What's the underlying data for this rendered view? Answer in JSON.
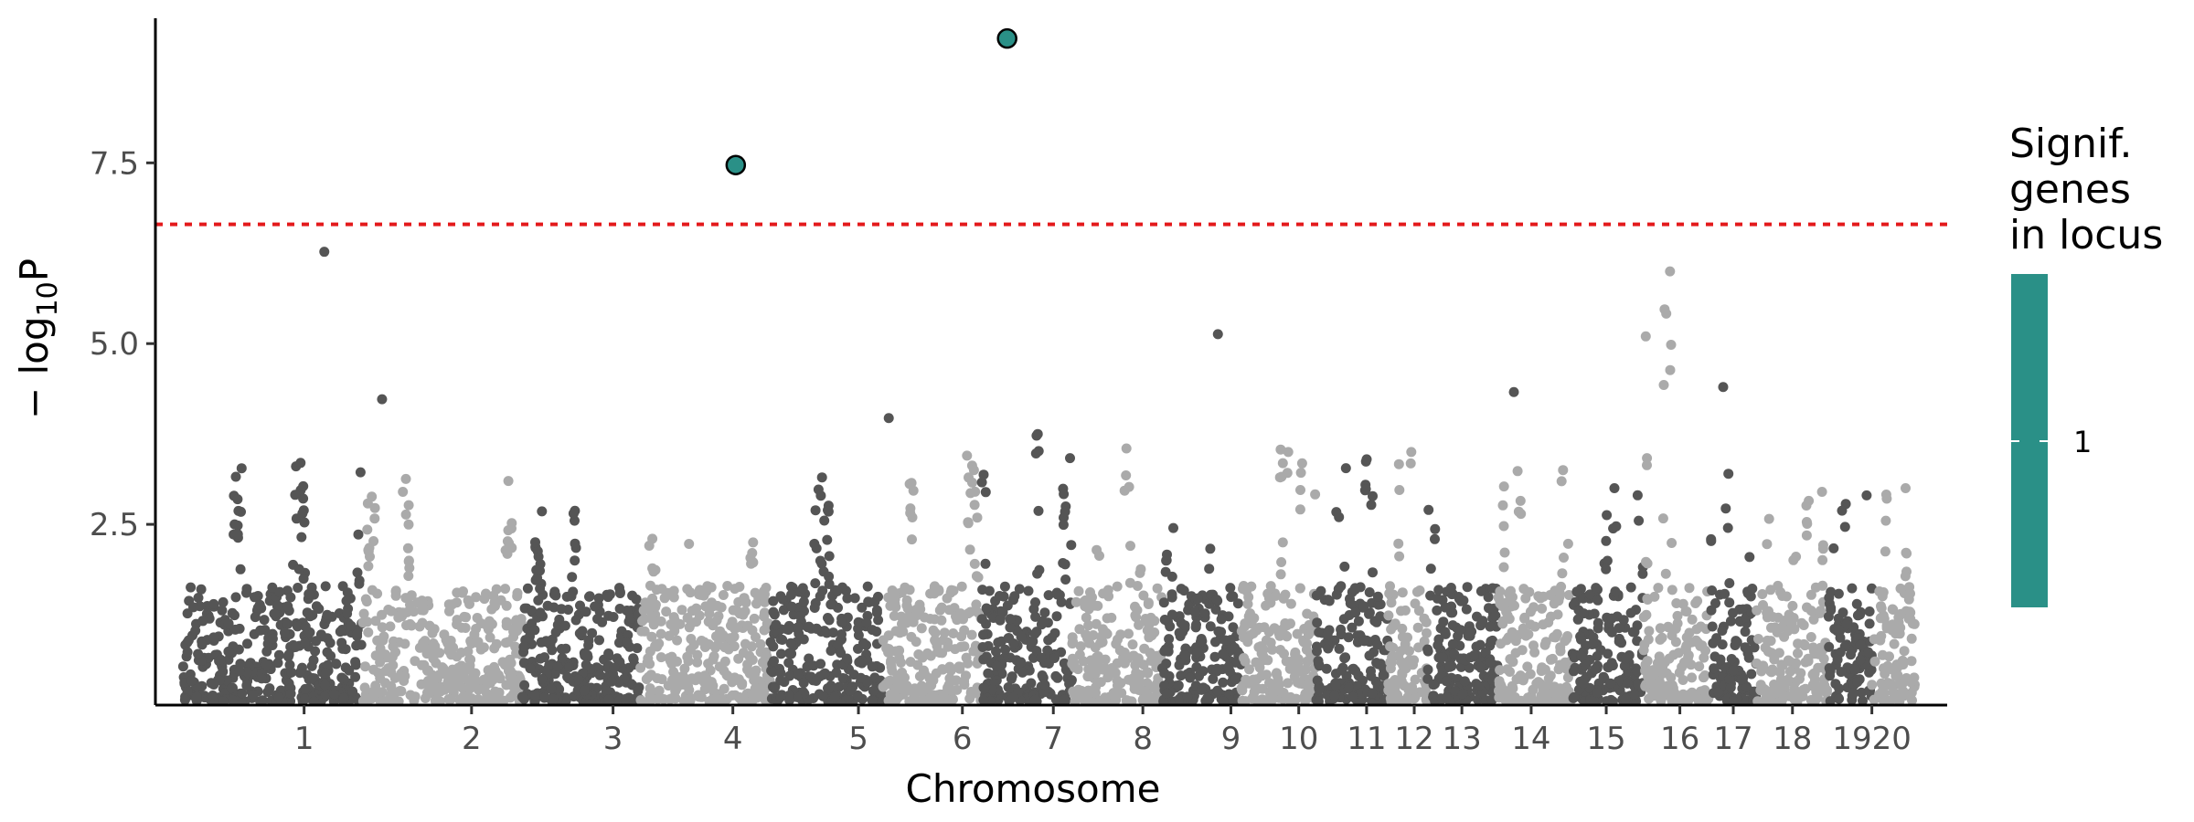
{
  "chart_data": {
    "type": "scatter",
    "subtype": "manhattan",
    "title": "",
    "xlabel": "Chromosome",
    "ylabel_base": "− log",
    "ylabel_sub": "10",
    "ylabel_tail": "P",
    "ylim": [
      0,
      9.5
    ],
    "yticks": [
      2.5,
      5.0,
      7.5
    ],
    "ytick_labels": [
      "2.5",
      "5.0",
      "7.5"
    ],
    "threshold": 6.65,
    "threshold_color": "#e41a1c",
    "grid": false,
    "colors": {
      "dark": "#555555",
      "light": "#aaaaaa",
      "significant": "#2a9087"
    },
    "chromosomes": [
      {
        "label": "1",
        "start": 0,
        "end": 1245,
        "max": 3.35,
        "shade": "dark"
      },
      {
        "label": "2",
        "start": 1245,
        "end": 2350,
        "max": 3.1,
        "shade": "light"
      },
      {
        "label": "3",
        "start": 2350,
        "end": 3170,
        "max": 2.65,
        "shade": "dark"
      },
      {
        "label": "4",
        "start": 3170,
        "end": 4070,
        "max": 2.3,
        "shade": "light"
      },
      {
        "label": "5",
        "start": 4070,
        "end": 4850,
        "max": 3.15,
        "shade": "dark"
      },
      {
        "label": "6",
        "start": 4850,
        "end": 5530,
        "max": 3.45,
        "shade": "light"
      },
      {
        "label": "7",
        "start": 5530,
        "end": 6160,
        "max": 3.75,
        "shade": "dark"
      },
      {
        "label": "8",
        "start": 6160,
        "end": 6780,
        "max": 3.55,
        "shade": "light"
      },
      {
        "label": "9",
        "start": 6780,
        "end": 7330,
        "max": 2.45,
        "shade": "dark"
      },
      {
        "label": "10",
        "start": 7330,
        "end": 7850,
        "max": 3.5,
        "shade": "light"
      },
      {
        "label": "11",
        "start": 7850,
        "end": 8350,
        "max": 3.4,
        "shade": "dark"
      },
      {
        "label": "12",
        "start": 8350,
        "end": 8620,
        "max": 3.5,
        "shade": "light"
      },
      {
        "label": "13",
        "start": 8620,
        "end": 9110,
        "max": 2.7,
        "shade": "dark"
      },
      {
        "label": "14",
        "start": 9110,
        "end": 9620,
        "max": 3.25,
        "shade": "light"
      },
      {
        "label": "15",
        "start": 9620,
        "end": 10120,
        "max": 3.0,
        "shade": "dark"
      },
      {
        "label": "16",
        "start": 10120,
        "end": 10580,
        "max": 6.0,
        "shade": "light"
      },
      {
        "label": "17",
        "start": 10580,
        "end": 10900,
        "max": 3.2,
        "shade": "dark"
      },
      {
        "label": "18",
        "start": 10900,
        "end": 11400,
        "max": 2.95,
        "shade": "light"
      },
      {
        "label": "19",
        "start": 11400,
        "end": 11700,
        "max": 2.9,
        "shade": "dark"
      },
      {
        "label": "20",
        "start": 11700,
        "end": 12000,
        "max": 3.0,
        "shade": "light"
      }
    ],
    "xtick_labels": [
      "1",
      "2",
      "3",
      "4",
      "5",
      "6",
      "7",
      "8",
      "9",
      "10",
      "11",
      "12",
      "13",
      "14",
      "15",
      "16",
      "17",
      "18",
      "1920"
    ],
    "xtick_positions": [
      840,
      2000,
      2980,
      3810,
      4680,
      5400,
      6030,
      6650,
      7260,
      7730,
      8200,
      8530,
      8860,
      9340,
      9860,
      10370,
      10740,
      11150,
      11700
    ],
    "outliers": [
      {
        "x": 980,
        "y": 6.27,
        "shade": "dark"
      },
      {
        "x": 1380,
        "y": 4.23,
        "shade": "dark"
      },
      {
        "x": 4890,
        "y": 3.97,
        "shade": "dark"
      },
      {
        "x": 5480,
        "y": 3.25,
        "shade": "light"
      },
      {
        "x": 5910,
        "y": 3.48,
        "shade": "dark"
      },
      {
        "x": 7170,
        "y": 5.13,
        "shade": "dark"
      },
      {
        "x": 9220,
        "y": 4.33,
        "shade": "dark"
      },
      {
        "x": 10670,
        "y": 4.4,
        "shade": "dark"
      }
    ],
    "significant_points": [
      {
        "x": 3830,
        "y": 7.47
      },
      {
        "x": 5710,
        "y": 9.22
      }
    ],
    "legend": {
      "title_lines": [
        "Signif.",
        "genes",
        "in locus"
      ],
      "entries": [
        {
          "label": "1",
          "color": "#2a9087"
        }
      ],
      "placement": "right"
    }
  }
}
